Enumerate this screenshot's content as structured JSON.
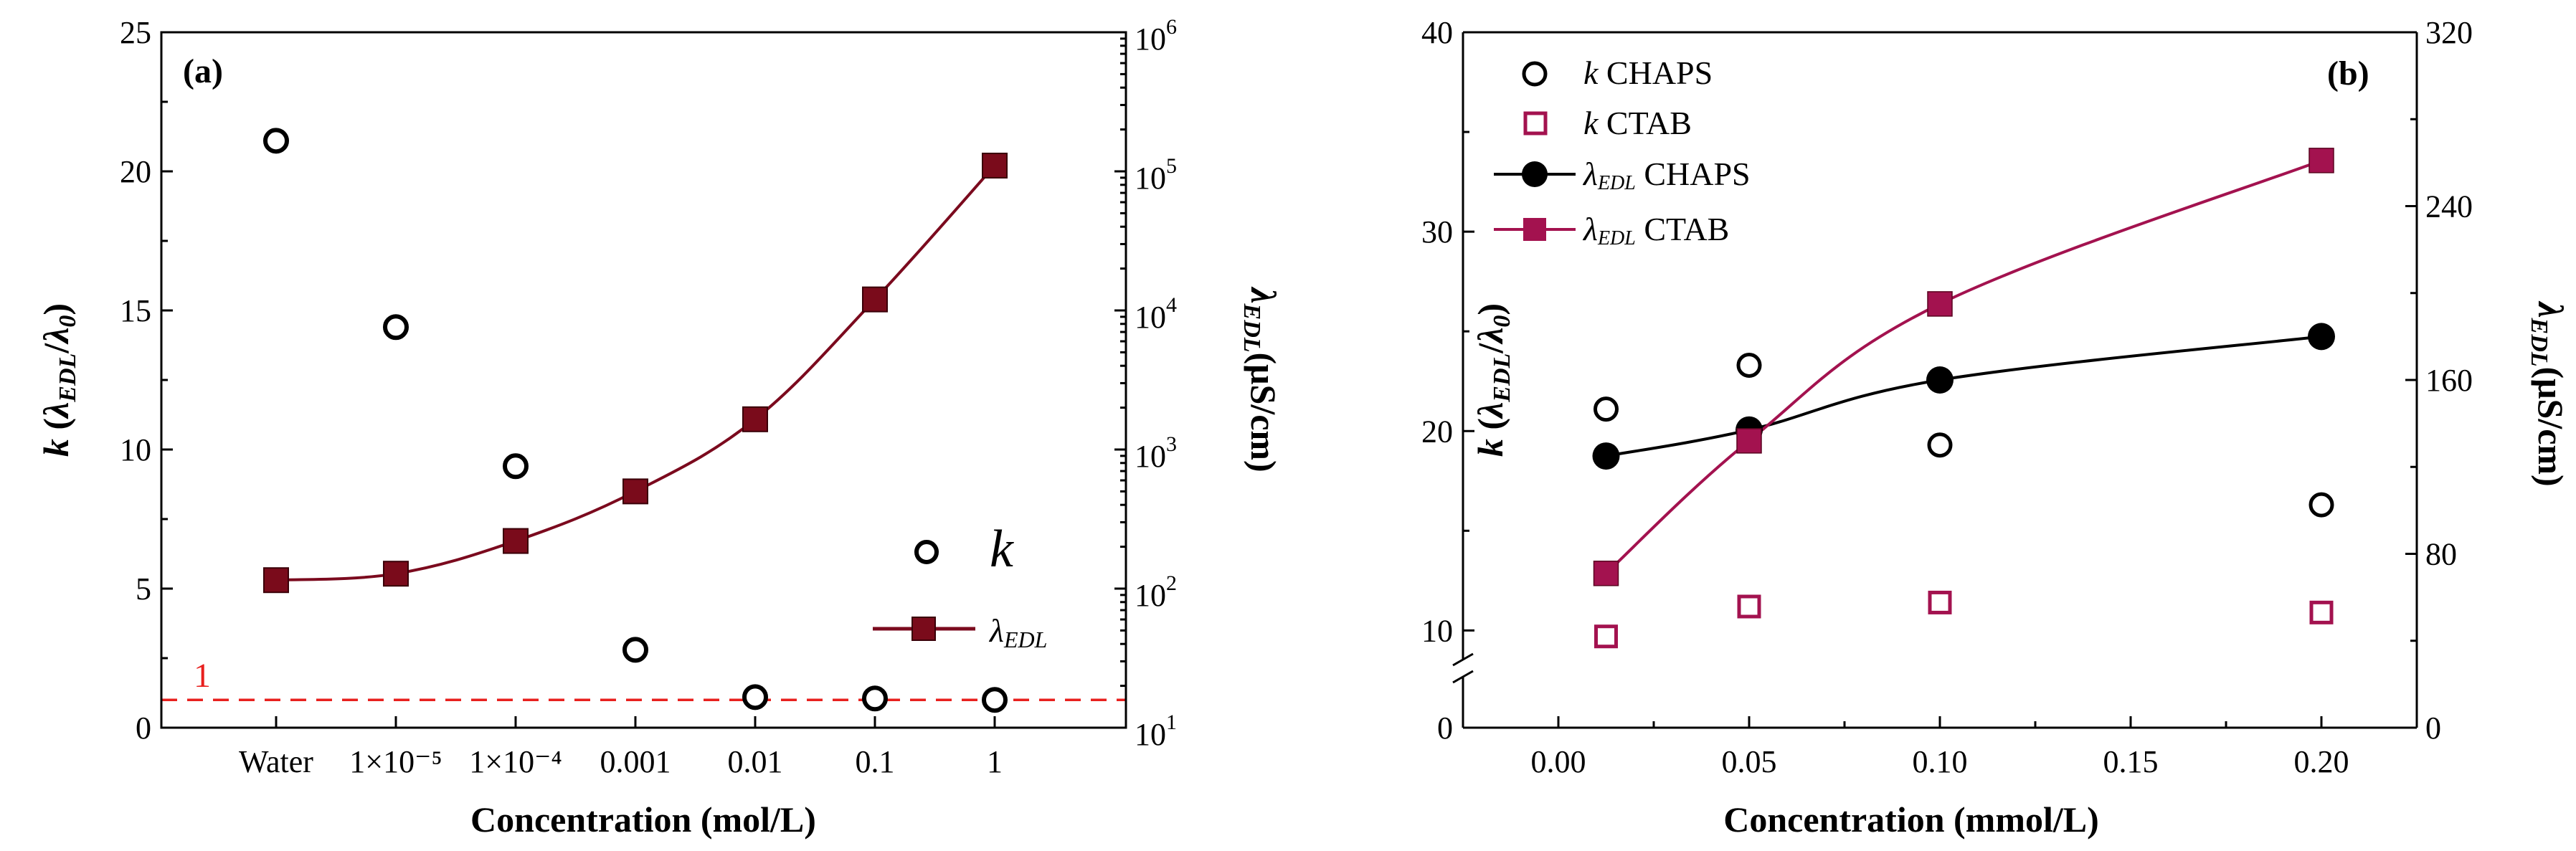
{
  "colors": {
    "maroon": "#7b0a1e",
    "maroonFill": "#7a0b1b",
    "crimson": "#a3124f",
    "black": "#000000",
    "red": "#e8201e"
  },
  "chart_data": [
    {
      "type": "scatter+line",
      "panel_label": "(a)",
      "xlabel": "Concentration (mol/L)",
      "categories": [
        "Water",
        "1×10⁻⁵",
        "1×10⁻⁴",
        "0.001",
        "0.01",
        "0.1",
        "1"
      ],
      "ylabel_left": {
        "main": "k",
        "paren_open": " (",
        "lambda": "λ",
        "sub1": "EDL",
        "slash": "/",
        "lambda2": "λ",
        "sub2": "0",
        "paren_close": ")"
      },
      "ylabel_right": {
        "lambda": "λ",
        "sub": "EDL",
        "unit": "(μS/cm)"
      },
      "ylim_left": [
        0,
        25
      ],
      "yticks_left": [
        0,
        5,
        10,
        15,
        20,
        25
      ],
      "ytick_labels_left": [
        "0",
        "5",
        "10",
        "15",
        "20",
        "25"
      ],
      "ylim_right_log10": [
        1,
        6
      ],
      "ytick_labels_right": [
        {
          "base": "10",
          "exp": "1"
        },
        {
          "base": "10",
          "exp": "2"
        },
        {
          "base": "10",
          "exp": "3"
        },
        {
          "base": "10",
          "exp": "4"
        },
        {
          "base": "10",
          "exp": "5"
        },
        {
          "base": "10",
          "exp": "6"
        }
      ],
      "series": [
        {
          "name": "k",
          "axis": "left",
          "marker": "open-circle",
          "values": [
            21.1,
            14.4,
            9.4,
            2.8,
            1.1,
            1.05,
            1.0
          ]
        },
        {
          "name": "λEDL",
          "axis": "right",
          "marker": "filled-square",
          "line": "smooth",
          "values": [
            115,
            128,
            220,
            500,
            1650,
            12000,
            110000
          ]
        }
      ],
      "reference_line": {
        "value": 1,
        "label": "1",
        "axis": "left"
      },
      "legend": [
        {
          "symbol": "k",
          "label": ""
        },
        {
          "symbol": "λ",
          "sub": "EDL"
        }
      ]
    },
    {
      "type": "scatter+line",
      "panel_label": "(b)",
      "xlabel": "Concentration (mmol/L)",
      "xlim": [
        -0.025,
        0.225
      ],
      "xticks": [
        0.0,
        0.05,
        0.1,
        0.15,
        0.2
      ],
      "xtick_labels": [
        "0.00",
        "0.05",
        "0.10",
        "0.15",
        "0.20"
      ],
      "ylabel_left": {
        "main": "k",
        "paren_open": " (",
        "lambda": "λ",
        "sub1": "EDL",
        "slash": "/",
        "lambda2": "λ",
        "sub2": "0",
        "paren_close": ")"
      },
      "ylabel_right": {
        "lambda": "λ",
        "sub": "EDL",
        "unit": "(μS/cm)"
      },
      "ylim_left_broken": {
        "lower": [
          0,
          1
        ],
        "upper": [
          8,
          40
        ]
      },
      "ytick_labels_left": [
        "0",
        "10",
        "20",
        "30",
        "40"
      ],
      "ylim_right": [
        0,
        320
      ],
      "yticks_right": [
        0,
        80,
        160,
        240,
        320
      ],
      "ytick_labels_right": [
        "0",
        "80",
        "160",
        "240",
        "320"
      ],
      "series": [
        {
          "name": "k CHAPS",
          "axis": "left",
          "marker": "open-circle",
          "x": [
            0.0125,
            0.05,
            0.1,
            0.2
          ],
          "values": [
            21.1,
            23.3,
            19.3,
            16.3
          ]
        },
        {
          "name": "k CTAB",
          "axis": "left",
          "marker": "open-square",
          "x": [
            0.0125,
            0.05,
            0.1,
            0.2
          ],
          "values": [
            9.7,
            11.2,
            11.4,
            10.9
          ]
        },
        {
          "name": "λEDL CHAPS",
          "axis": "right",
          "marker": "filled-circle",
          "line": "smooth",
          "x": [
            0.0125,
            0.05,
            0.1,
            0.2
          ],
          "values": [
            125,
            137,
            160,
            180
          ]
        },
        {
          "name": "λEDL CTAB",
          "axis": "right",
          "marker": "filled-square",
          "line": "smooth",
          "x": [
            0.0125,
            0.05,
            0.1,
            0.2
          ],
          "values": [
            71,
            132,
            195,
            261
          ]
        }
      ],
      "legend": [
        {
          "sym": "k",
          "label": " CHAPS"
        },
        {
          "sym": "k",
          "label": " CTAB"
        },
        {
          "sym": "λ",
          "sub": "EDL",
          "label": " CHAPS"
        },
        {
          "sym": "λ",
          "sub": "EDL",
          "label": " CTAB"
        }
      ]
    }
  ]
}
